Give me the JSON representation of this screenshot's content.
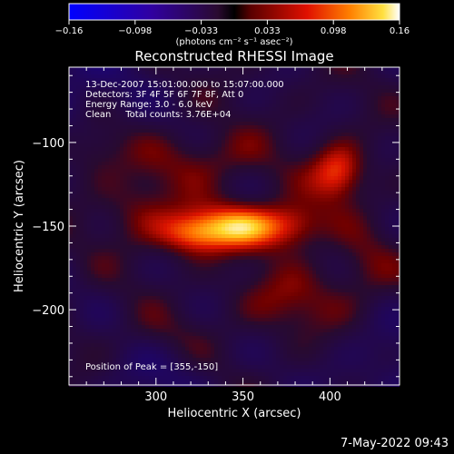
{
  "chart_data": {
    "type": "heatmap",
    "title": "Reconstructed RHESSI Image",
    "xlabel": "Heliocentric X (arcsec)",
    "ylabel": "Heliocentric Y (arcsec)",
    "xlim": [
      250,
      440
    ],
    "ylim": [
      -245,
      -55
    ],
    "x_ticks": [
      300,
      350,
      400
    ],
    "y_ticks": [
      -100,
      -150,
      -200
    ],
    "colorbar": {
      "label": "(photons cm⁻² s⁻¹ asec⁻²)",
      "range": [
        -0.16,
        0.16
      ],
      "ticks": [
        "−0.16",
        "−0.098",
        "−0.033",
        "0.033",
        "0.098",
        "0.16"
      ]
    },
    "annotations": [
      "13-Dec-2007 15:01:00.000 to 15:07:00.000",
      "Detectors: 3F 4F 5F 6F 7F 8F, Att 0",
      "Energy Range: 3.0 - 6.0 keV",
      "Clean     Total counts: 3.76E+04"
    ],
    "peak_label": "Position of Peak = [355,-150]",
    "peak": {
      "x": 355,
      "y": -150
    },
    "sources": [
      {
        "x": 350,
        "y": -150,
        "sx": 22,
        "sy": 10,
        "amp": 0.13
      },
      {
        "x": 320,
        "y": -155,
        "sx": 14,
        "sy": 9,
        "amp": 0.09
      },
      {
        "x": 405,
        "y": -118,
        "sx": 11,
        "sy": 12,
        "amp": 0.11
      },
      {
        "x": 380,
        "y": -150,
        "sx": 12,
        "sy": 10,
        "amp": 0.06
      },
      {
        "x": 330,
        "y": -110,
        "sx": 25,
        "sy": 12,
        "amp": 0.05
      },
      {
        "x": 290,
        "y": -140,
        "sx": 15,
        "sy": 15,
        "amp": 0.05
      },
      {
        "x": 380,
        "y": -195,
        "sx": 25,
        "sy": 14,
        "amp": 0.05
      },
      {
        "x": 265,
        "y": -105,
        "sx": 12,
        "sy": 12,
        "amp": 0.04
      },
      {
        "x": 420,
        "y": -175,
        "sx": 12,
        "sy": 14,
        "amp": 0.04
      },
      {
        "x": 300,
        "y": -215,
        "sx": 20,
        "sy": 10,
        "amp": 0.03
      }
    ]
  },
  "date_stamp": "7-May-2022 09:43"
}
